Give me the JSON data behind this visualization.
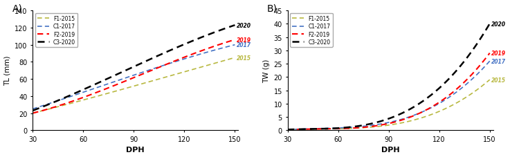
{
  "title_A": "A)",
  "title_B": "B)",
  "xlabel": "DPH",
  "ylabel_A": "TL (mm)",
  "ylabel_B": "TW (g)",
  "xmin": 30,
  "xmax": 150,
  "ylim_A": [
    0,
    140
  ],
  "ylim_B": [
    0,
    45
  ],
  "yticks_A": [
    0,
    20,
    40,
    60,
    80,
    100,
    120,
    140
  ],
  "yticks_B": [
    0,
    5,
    10,
    15,
    20,
    25,
    30,
    35,
    40,
    45
  ],
  "xticks": [
    30,
    60,
    90,
    120,
    150
  ],
  "TL_data": {
    "F1-2015": {
      "x": [
        30,
        60,
        90,
        120,
        150
      ],
      "y": [
        20,
        35,
        52,
        68,
        85
      ]
    },
    "C1-2017": {
      "x": [
        30,
        60,
        90,
        120,
        150
      ],
      "y": [
        25,
        44,
        65,
        83,
        100
      ]
    },
    "F2-2019": {
      "x": [
        30,
        60,
        90,
        120,
        150
      ],
      "y": [
        20,
        38,
        62,
        85,
        106
      ]
    },
    "C3-2020": {
      "x": [
        30,
        60,
        90,
        120,
        150
      ],
      "y": [
        23,
        47,
        75,
        100,
        123
      ]
    }
  },
  "TW_data": {
    "F1-2015": {
      "x": [
        30,
        60,
        90,
        120,
        150
      ],
      "y": [
        0.1,
        0.5,
        2.0,
        7.0,
        19
      ]
    },
    "C1-2017": {
      "x": [
        30,
        60,
        90,
        120,
        150
      ],
      "y": [
        0.2,
        0.8,
        3.0,
        10.0,
        26
      ]
    },
    "F2-2019": {
      "x": [
        30,
        60,
        90,
        120,
        150
      ],
      "y": [
        0.1,
        0.6,
        2.5,
        10.5,
        29
      ]
    },
    "C3-2020": {
      "x": [
        30,
        60,
        90,
        120,
        150
      ],
      "y": [
        0.2,
        1.0,
        4.0,
        16.0,
        40
      ]
    }
  },
  "series": [
    {
      "label": "F1-2015",
      "end_label": "2015",
      "color": "#b8b840",
      "linewidth": 1.2
    },
    {
      "label": "C1-2017",
      "end_label": "2017",
      "color": "#4472C4",
      "linewidth": 1.2
    },
    {
      "label": "F2-2019",
      "end_label": "2019",
      "color": "#FF0000",
      "linewidth": 1.5
    },
    {
      "label": "C3-2020",
      "end_label": "2020",
      "color": "#000000",
      "linewidth": 1.8
    }
  ],
  "end_label_colors": {
    "2015": "#b8b840",
    "2017": "#4472C4",
    "2019": "#FF0000",
    "2020": "#000000"
  },
  "end_labels_A": [
    [
      "2015",
      85
    ],
    [
      "2017",
      100
    ],
    [
      "2019",
      106
    ],
    [
      "2020",
      123
    ]
  ],
  "end_labels_B": [
    [
      "2015",
      19
    ],
    [
      "2017",
      26
    ],
    [
      "2019",
      29
    ],
    [
      "2020",
      40
    ]
  ],
  "legend_loc": "upper left",
  "background_color": "#ffffff"
}
